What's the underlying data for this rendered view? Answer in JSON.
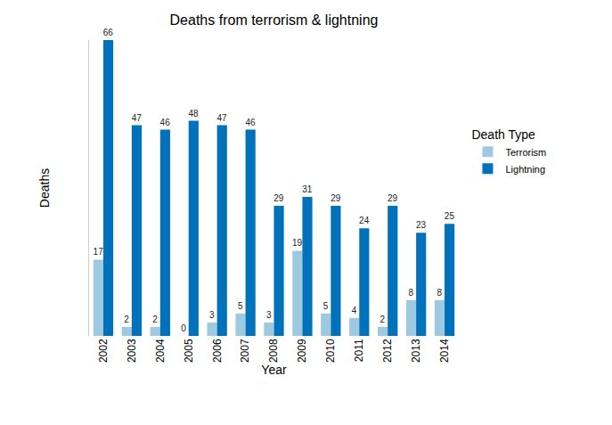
{
  "chart_data": {
    "type": "bar",
    "title": "Deaths from terrorism & lightning",
    "xlabel": "Year",
    "ylabel": "Deaths",
    "legend_title": "Death Type",
    "categories": [
      "2002",
      "2003",
      "2004",
      "2005",
      "2006",
      "2007",
      "2008",
      "2009",
      "2010",
      "2011",
      "2012",
      "2013",
      "2014"
    ],
    "series": [
      {
        "name": "Terrorism",
        "color": "#9ecae1",
        "values": [
          17,
          2,
          2,
          0,
          3,
          5,
          3,
          19,
          5,
          4,
          2,
          8,
          8
        ]
      },
      {
        "name": "Lightning",
        "color": "#0072bb",
        "values": [
          66,
          47,
          46,
          48,
          47,
          46,
          29,
          31,
          29,
          24,
          29,
          23,
          25
        ]
      }
    ],
    "ylim": [
      0,
      66
    ],
    "data_labels": true,
    "tick_labels": "x",
    "legend": "right",
    "grid": false
  }
}
